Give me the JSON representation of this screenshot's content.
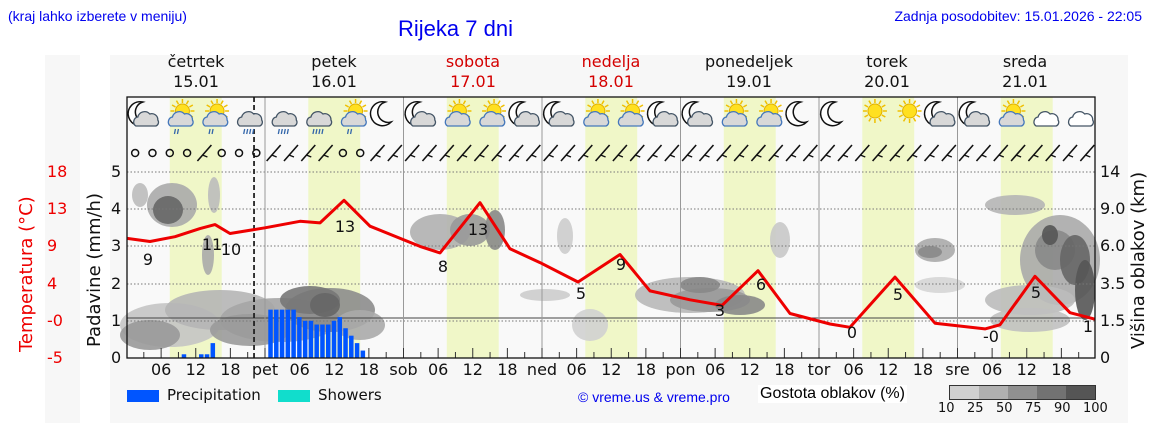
{
  "header": {
    "hint": "(kraj lahko izberete v meniju)",
    "title": "Rijeka 7 dni",
    "updated": "Zadnja posodobitev: 15.01.2026 - 22:05"
  },
  "days": [
    {
      "name": "četrtek",
      "date": "15.01",
      "weekend": false
    },
    {
      "name": "petek",
      "date": "16.01",
      "weekend": false
    },
    {
      "name": "sobota",
      "date": "17.01",
      "weekend": true
    },
    {
      "name": "nedelja",
      "date": "18.01",
      "weekend": true
    },
    {
      "name": "ponedeljek",
      "date": "19.01",
      "weekend": false
    },
    {
      "name": "torek",
      "date": "20.01",
      "weekend": false
    },
    {
      "name": "sreda",
      "date": "21.01",
      "weekend": false
    }
  ],
  "axes": {
    "temp_label": "Temperatura (°C)",
    "temp_ticks": [
      "18",
      "13",
      "9",
      "4",
      "-0",
      "-5"
    ],
    "precip_label": "Padavine (mm/h)",
    "precip_ticks": [
      "5",
      "4",
      "3",
      "2",
      "1",
      "0"
    ],
    "cloud_label": "Višina oblakov (km)",
    "cloud_ticks": [
      "14",
      "9.0",
      "6.0",
      "3.5",
      "1.5",
      "0"
    ],
    "x_ticks": [
      "06",
      "12",
      "18",
      "pet",
      "06",
      "12",
      "18",
      "sob",
      "06",
      "12",
      "18",
      "ned",
      "06",
      "12",
      "18",
      "pon",
      "06",
      "12",
      "18",
      "tor",
      "06",
      "12",
      "18",
      "sre",
      "06",
      "12",
      "18"
    ]
  },
  "legend": {
    "precipitation": "Precipitation",
    "showers": "Showers",
    "precip_color": "#0055ff",
    "showers_color": "#11ddcc",
    "copyright": "© vreme.us & vreme.pro",
    "cloud_density_label": "Gostota oblakov (%)",
    "cloud_scale": [
      "10",
      "25",
      "50",
      "75",
      "90",
      "100"
    ],
    "cloud_scale_colors": [
      "#d0d0d0",
      "#b0b0b0",
      "#909090",
      "#727272",
      "#555555"
    ]
  },
  "chart_data": {
    "type": "line",
    "title": "Rijeka 7 dni",
    "xlabel": "",
    "ylabel": "Temperatura (°C)",
    "ylim": [
      -5,
      18
    ],
    "temperature_labels": [
      {
        "day": "15.01",
        "time": "03",
        "value": 9
      },
      {
        "day": "15.01",
        "time": "14",
        "value": 11
      },
      {
        "day": "15.01",
        "time": "16",
        "value": 10
      },
      {
        "day": "16.01",
        "time": "14",
        "value": 13
      },
      {
        "day": "17.01",
        "time": "06",
        "value": 8
      },
      {
        "day": "17.01",
        "time": "13",
        "value": 13
      },
      {
        "day": "18.01",
        "time": "06",
        "value": 5
      },
      {
        "day": "18.01",
        "time": "14",
        "value": 9
      },
      {
        "day": "19.01",
        "time": "07",
        "value": 3
      },
      {
        "day": "19.01",
        "time": "14",
        "value": 6
      },
      {
        "day": "20.01",
        "time": "06",
        "value": 0
      },
      {
        "day": "20.01",
        "time": "14",
        "value": 5
      },
      {
        "day": "21.01",
        "time": "06",
        "value": 0
      },
      {
        "day": "21.01",
        "time": "13",
        "value": 5
      },
      {
        "day": "21.01",
        "time": "23",
        "value": 1
      }
    ],
    "precipitation_mm_h": {
      "unit": "mm/h",
      "ylim": [
        0,
        5
      ],
      "bars": [
        {
          "day": "15.01",
          "time": "10",
          "value": 0.1
        },
        {
          "day": "15.01",
          "time": "13",
          "value": 0.1
        },
        {
          "day": "15.01",
          "time": "14",
          "value": 0.1
        },
        {
          "day": "15.01",
          "time": "15",
          "value": 0.4
        },
        {
          "day": "16.01",
          "time": "01",
          "value": 1.3
        },
        {
          "day": "16.01",
          "time": "02",
          "value": 1.3
        },
        {
          "day": "16.01",
          "time": "03",
          "value": 1.3
        },
        {
          "day": "16.01",
          "time": "04",
          "value": 1.3
        },
        {
          "day": "16.01",
          "time": "05",
          "value": 1.3
        },
        {
          "day": "16.01",
          "time": "06",
          "value": 1.1
        },
        {
          "day": "16.01",
          "time": "07",
          "value": 1.0
        },
        {
          "day": "16.01",
          "time": "08",
          "value": 1.0
        },
        {
          "day": "16.01",
          "time": "09",
          "value": 0.9
        },
        {
          "day": "16.01",
          "time": "10",
          "value": 0.9
        },
        {
          "day": "16.01",
          "time": "11",
          "value": 0.9
        },
        {
          "day": "16.01",
          "time": "12",
          "value": 1.0
        },
        {
          "day": "16.01",
          "time": "13",
          "value": 1.1
        },
        {
          "day": "16.01",
          "time": "14",
          "value": 0.8
        },
        {
          "day": "16.01",
          "time": "15",
          "value": 0.6
        },
        {
          "day": "16.01",
          "time": "16",
          "value": 0.4
        },
        {
          "day": "16.01",
          "time": "17",
          "value": 0.2
        }
      ]
    },
    "cloud_height_km_ticks": [
      0,
      1.5,
      3.5,
      6.0,
      9.0,
      14
    ],
    "cloud_density_scale_pct": [
      10,
      25,
      50,
      75,
      90,
      100
    ],
    "current_time_marker": "15.01 22:05",
    "grid": true,
    "legend_position": "bottom"
  },
  "weather_icons": [
    "moon-cloud",
    "sun-cloud-rain",
    "sun-cloud-rain",
    "cloud-rain",
    "cloud-rain",
    "cloud-rain",
    "sun-cloud-rain",
    "moon",
    "moon-cloud",
    "sun-cloud",
    "sun-cloud",
    "moon-cloud",
    "moon-cloud",
    "sun-cloud",
    "sun-cloud",
    "moon-cloud",
    "moon-cloud",
    "sun-cloud",
    "sun-cloud",
    "moon",
    "moon",
    "sun",
    "sun",
    "moon-cloud",
    "moon-cloud",
    "sun-cloud",
    "cloud",
    "cloud"
  ]
}
